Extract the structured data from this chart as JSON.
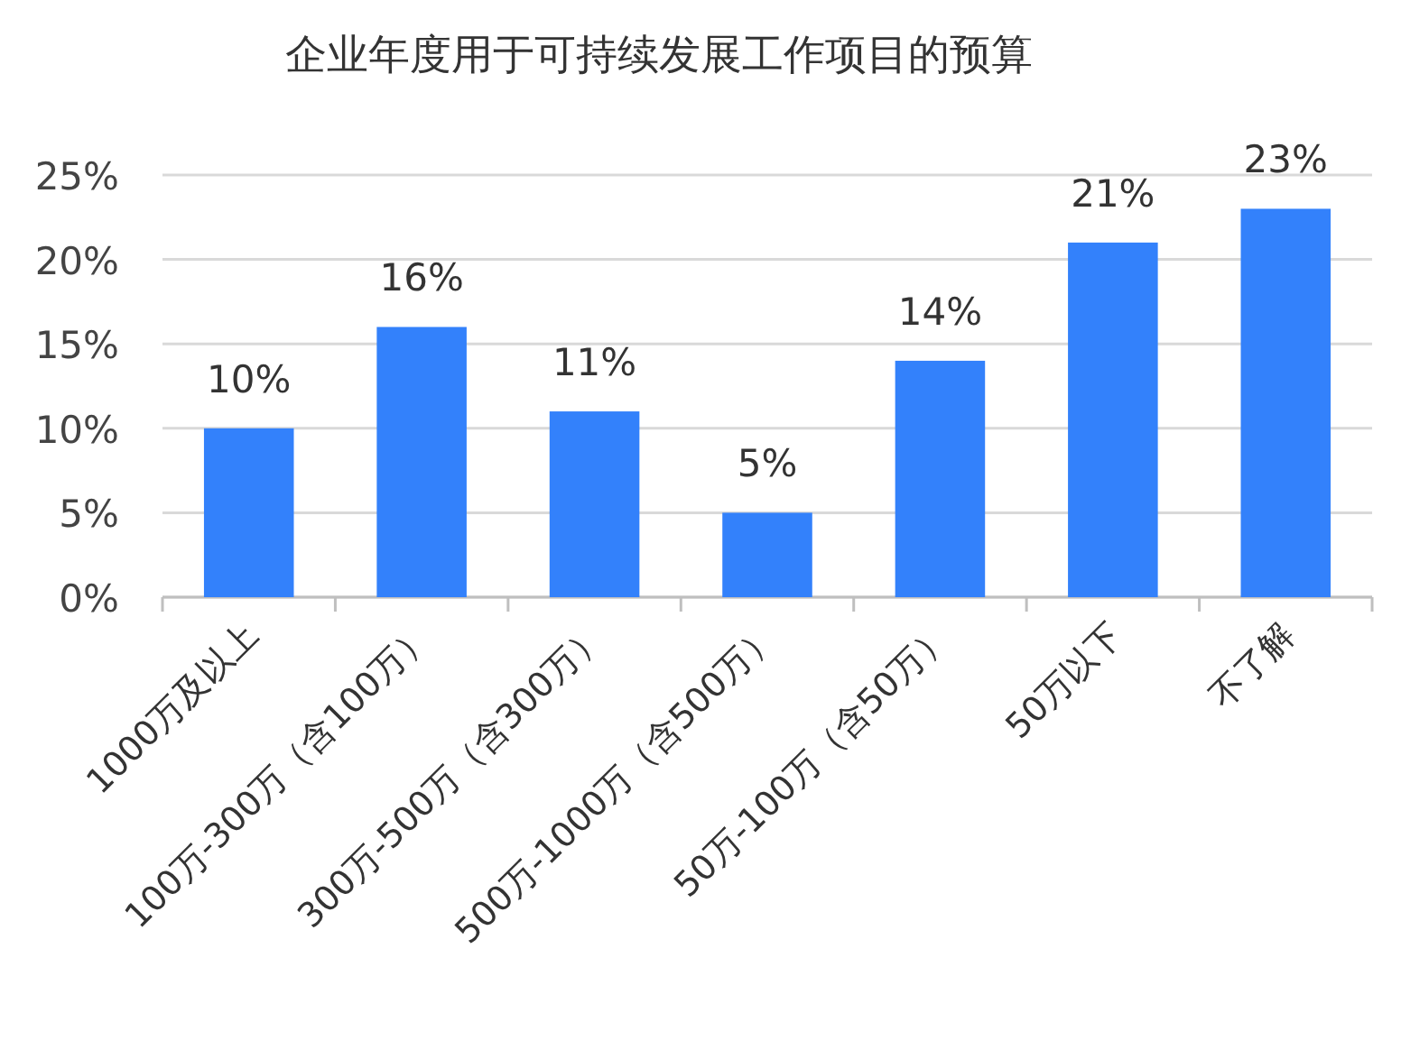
{
  "chart_data": {
    "type": "bar",
    "title": "企业年度用于可持续发展工作项目的预算",
    "categories": [
      "1000万及以上",
      "100万-300万（含100万）",
      "300万-500万（含300万）",
      "500万-1000万（含500万）",
      "50万-100万（含50万）",
      "50万以下",
      "不了解"
    ],
    "values": [
      10,
      16,
      11,
      5,
      14,
      21,
      23
    ],
    "value_labels": [
      "10%",
      "16%",
      "11%",
      "5%",
      "14%",
      "21%",
      "23%"
    ],
    "color": "#3381fb",
    "ylim": [
      0,
      25
    ],
    "yticks": [
      {
        "value": 0,
        "label": "0%"
      },
      {
        "value": 5,
        "label": "5%"
      },
      {
        "value": 10,
        "label": "10%"
      },
      {
        "value": 15,
        "label": "15%"
      },
      {
        "value": 20,
        "label": "20%"
      },
      {
        "value": 25,
        "label": "25%"
      }
    ],
    "grid": "y"
  }
}
